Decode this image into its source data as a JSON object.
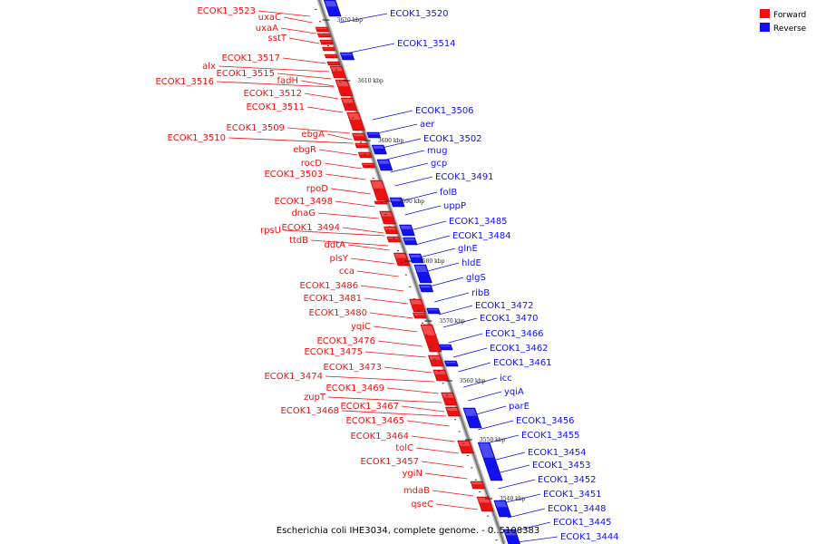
{
  "caption": "Escherichia coli IHE3034, complete genome. - 0..5108383",
  "colors": {
    "forward": "#ee1111",
    "reverse": "#1111ee",
    "backbone": "#888888"
  },
  "legend": [
    {
      "label": "Forward",
      "color": "#ee1111"
    },
    {
      "label": "Reverse",
      "color": "#1111ee"
    }
  ],
  "ticks": [
    "3620 kbp",
    "3610 kbp",
    "3600 kbp",
    "3590 kbp",
    "3580 kbp",
    "3570 kbp",
    "3560 kbp",
    "3550 kbp",
    "3540 kbp"
  ],
  "forward_labels": [
    "ECOK1_3523",
    "uxaC",
    "uxaA",
    "sstT",
    "ECOK1_3517",
    "alx",
    "ECOK1_3515",
    "ECOK1_3516",
    "fadH",
    "ECOK1_3512",
    "ECOK1_3511",
    "ECOK1_3509",
    "ebgA",
    "ECOK1_3510",
    "ebgR",
    "rocD",
    "ECOK1_3503",
    "rpoD",
    "ECOK1_3498",
    "dnaG",
    "ECOK1_3494",
    "rpsU",
    "ttdB",
    "ddtA",
    "plsY",
    "cca",
    "ECOK1_3486",
    "ECOK1_3481",
    "ECOK1_3480",
    "yqiC",
    "ECOK1_3476",
    "ECOK1_3475",
    "ECOK1_3473",
    "ECOK1_3474",
    "ECOK1_3469",
    "zupT",
    "ECOK1_3467",
    "ECOK1_3468",
    "ECOK1_3465",
    "ECOK1_3464",
    "tolC",
    "ECOK1_3457",
    "ygiN",
    "mdaB",
    "qseC"
  ],
  "reverse_labels": [
    "ECOK1_3520",
    "ECOK1_3514",
    "ECOK1_3506",
    "aer",
    "ECOK1_3502",
    "mug",
    "gcp",
    "ECOK1_3491",
    "folB",
    "uppP",
    "ECOK1_3485",
    "ECOK1_3484",
    "glnE",
    "hldE",
    "glgS",
    "ribB",
    "ECOK1_3472",
    "ECOK1_3470",
    "ECOK1_3466",
    "ECOK1_3462",
    "ECOK1_3461",
    "icc",
    "yqiA",
    "parE",
    "ECOK1_3456",
    "ECOK1_3455",
    "ECOK1_3454",
    "ECOK1_3453",
    "ECOK1_3452",
    "ECOK1_3451",
    "ECOK1_3448",
    "ECOK1_3445",
    "ECOK1_3444"
  ]
}
